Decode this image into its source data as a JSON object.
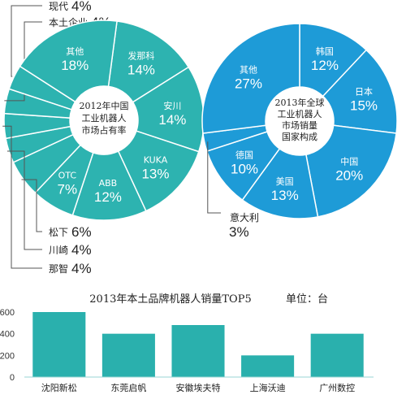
{
  "colors": {
    "teal": "#2db3b0",
    "blue": "#1e9bd7",
    "bar": "#2ab0ad",
    "white": "#ffffff",
    "leader": "#555555"
  },
  "chart_data": [
    {
      "type": "pie",
      "title": "2012年中国工业机器人市场占有率",
      "center_lines": [
        "2012年中国",
        "工业机器人",
        "市场占有率"
      ],
      "slices": [
        {
          "name": "发那科",
          "value": 14
        },
        {
          "name": "安川",
          "value": 14
        },
        {
          "name": "KUKA",
          "value": 13
        },
        {
          "name": "ABB",
          "value": 12
        },
        {
          "name": "OTC",
          "value": 7
        },
        {
          "name": "松下",
          "value": 6
        },
        {
          "name": "川崎",
          "value": 4
        },
        {
          "name": "那智",
          "value": 4
        },
        {
          "name": "本土企业",
          "value": 4
        },
        {
          "name": "现代",
          "value": 4
        },
        {
          "name": "其他",
          "value": 18
        }
      ]
    },
    {
      "type": "pie",
      "title": "2013年全球工业机器人市场销量国家构成",
      "center_lines": [
        "2013年全球",
        "工业机器人",
        "市场销量",
        "国家构成"
      ],
      "slices": [
        {
          "name": "韩国",
          "value": 12
        },
        {
          "name": "日本",
          "value": 15
        },
        {
          "name": "中国",
          "value": 20
        },
        {
          "name": "美国",
          "value": 13
        },
        {
          "name": "德国",
          "value": 10
        },
        {
          "name": "意大利",
          "value": 3
        },
        {
          "name": "其他",
          "value": 27
        }
      ]
    },
    {
      "type": "bar",
      "title": "2013年本土品牌机器人销量TOP5",
      "unit": "单位：台",
      "categories": [
        "沈阳新松",
        "东莞启帆",
        "安徽埃夫特",
        "上海沃迪",
        "广州数控"
      ],
      "values": [
        600,
        400,
        480,
        200,
        400
      ],
      "ylim": [
        0,
        600
      ],
      "yticks": [
        "0",
        "200",
        "400",
        "600"
      ],
      "grid": false
    }
  ]
}
